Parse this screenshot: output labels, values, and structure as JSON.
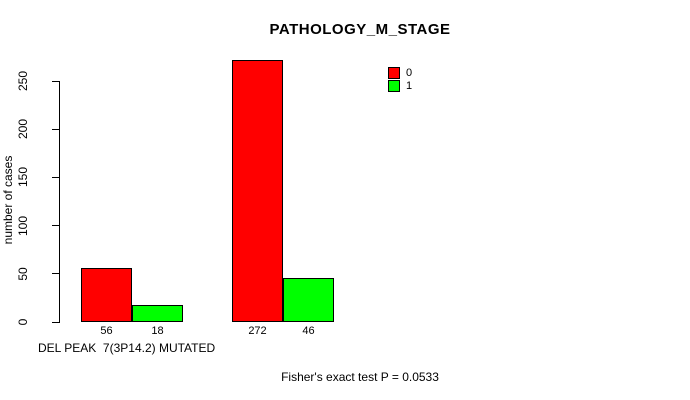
{
  "chart_data": {
    "type": "bar",
    "title": "PATHOLOGY_M_STAGE",
    "xlabel": "DEL PEAK  7(3P14.2) MUTATED",
    "ylabel": "number of cases",
    "categories": [
      "",
      ""
    ],
    "series": [
      {
        "name": "0",
        "color": "#ff0000",
        "values": [
          56,
          272
        ]
      },
      {
        "name": "1",
        "color": "#00ff00",
        "values": [
          18,
          46
        ]
      }
    ],
    "bar_value_labels": [
      [
        56,
        18
      ],
      [
        272,
        46
      ]
    ],
    "ylim": [
      0,
      250
    ],
    "yticks": [
      0,
      50,
      100,
      150,
      200,
      250
    ],
    "grid": false,
    "legend_position": "top-right",
    "annotation": "Fisher's exact test P = 0.0533"
  }
}
